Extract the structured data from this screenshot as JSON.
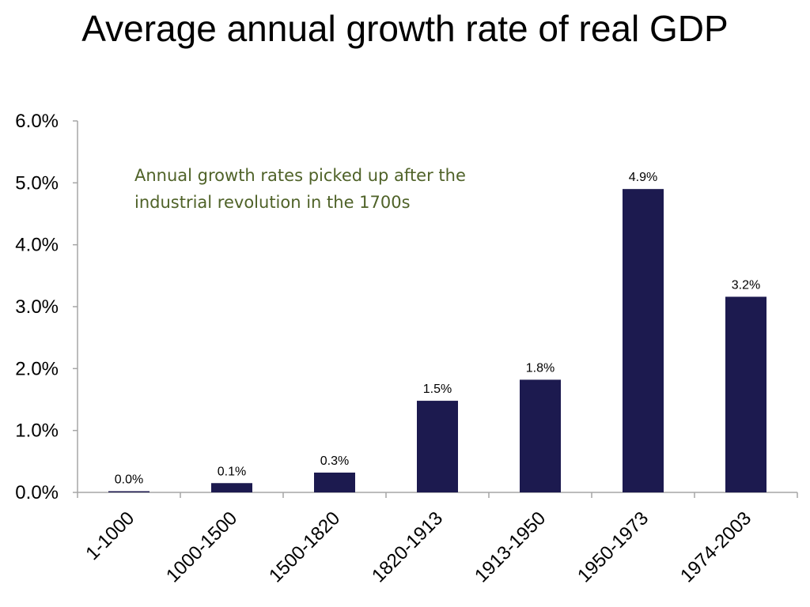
{
  "chart_data": {
    "type": "bar",
    "title": "Average annual growth rate of real GDP",
    "xlabel": "",
    "ylabel": "",
    "categories": [
      "1-1000",
      "1000-1500",
      "1500-1820",
      "1820-1913",
      "1913-1950",
      "1950-1973",
      "1974-2003"
    ],
    "values": [
      0.0,
      0.15,
      0.32,
      1.48,
      1.82,
      4.9,
      3.16
    ],
    "data_labels": [
      "0.0%",
      "0.1%",
      "0.3%",
      "1.5%",
      "1.8%",
      "4.9%",
      "3.2%"
    ],
    "ylim": [
      0,
      6
    ],
    "y_ticks": [
      0,
      1,
      2,
      3,
      4,
      5,
      6
    ],
    "y_tick_labels": [
      "0.0%",
      "1.0%",
      "2.0%",
      "3.0%",
      "4.0%",
      "5.0%",
      "6.0%"
    ],
    "grid": false,
    "bar_color": "#1c1a4f",
    "annotation": "Annual growth rates picked up after the industrial revolution in the 1700s",
    "annotation_color": "#4f6228"
  }
}
